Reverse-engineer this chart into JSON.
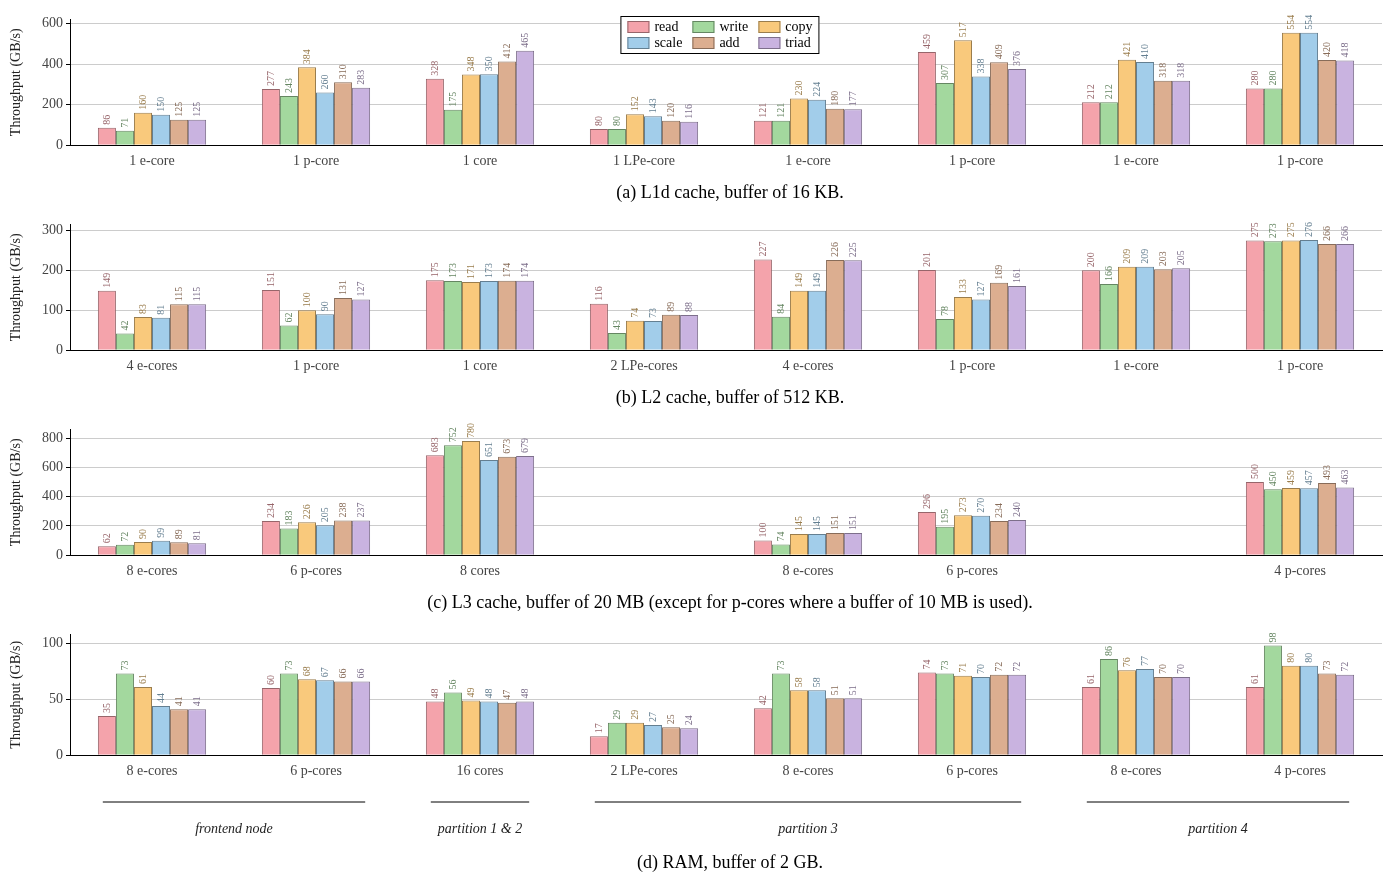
{
  "chart_data": [
    {
      "type": "bar",
      "title": "(a) L1d cache, buffer of 16 KB.",
      "ylabel": "Throughput (GB/s)",
      "categories": [
        "1 e-core",
        "1 p-core",
        "1 core",
        "1 LPe-core",
        "1 e-core",
        "1 p-core",
        "1 e-core",
        "1 p-core"
      ],
      "ylim": [
        0,
        620
      ],
      "yticks": [
        0,
        200,
        400,
        600
      ],
      "grid": "y",
      "legend": "top",
      "data_labels": true,
      "series": [
        {
          "name": "read",
          "color": "#f4a3ab",
          "values": [
            86,
            277,
            328,
            80,
            121,
            459,
            212,
            280
          ]
        },
        {
          "name": "write",
          "color": "#a3d89e",
          "values": [
            71,
            243,
            175,
            80,
            121,
            307,
            212,
            280
          ]
        },
        {
          "name": "copy",
          "color": "#f9c97c",
          "values": [
            160,
            384,
            348,
            152,
            230,
            517,
            421,
            554
          ]
        },
        {
          "name": "scale",
          "color": "#a2cdea",
          "values": [
            150,
            260,
            350,
            143,
            224,
            338,
            410,
            554
          ]
        },
        {
          "name": "add",
          "color": "#dcae90",
          "values": [
            125,
            310,
            412,
            120,
            180,
            409,
            318,
            420
          ]
        },
        {
          "name": "triad",
          "color": "#c9b3e0",
          "values": [
            125,
            283,
            465,
            116,
            177,
            376,
            318,
            418
          ]
        }
      ]
    },
    {
      "type": "bar",
      "title": "(b) L2 cache, buffer of 512 KB.",
      "ylabel": "Throughput (GB/s)",
      "categories": [
        "4 e-cores",
        "1 p-core",
        "1 core",
        "2 LPe-cores",
        "4 e-cores",
        "1 p-core",
        "1 e-core",
        "1 p-core"
      ],
      "ylim": [
        0,
        315
      ],
      "yticks": [
        0,
        100,
        200,
        300
      ],
      "grid": "y",
      "data_labels": true,
      "series": [
        {
          "color": "#f4a3ab",
          "values": [
            149,
            151,
            175,
            116,
            227,
            201,
            200,
            275
          ]
        },
        {
          "color": "#a3d89e",
          "values": [
            42,
            62,
            173,
            43,
            84,
            78,
            166,
            273
          ]
        },
        {
          "color": "#f9c97c",
          "values": [
            83,
            100,
            171,
            74,
            149,
            133,
            209,
            275
          ]
        },
        {
          "color": "#a2cdea",
          "values": [
            81,
            90,
            173,
            73,
            149,
            127,
            209,
            276
          ]
        },
        {
          "color": "#dcae90",
          "values": [
            115,
            131,
            174,
            89,
            226,
            169,
            203,
            266
          ]
        },
        {
          "color": "#c9b3e0",
          "values": [
            115,
            127,
            174,
            88,
            225,
            161,
            205,
            266
          ]
        }
      ]
    },
    {
      "type": "bar",
      "title": "(c) L3 cache, buffer of 20 MB (except for p-cores where a buffer of 10 MB is used).",
      "ylabel": "Throughput (GB/s)",
      "categories": [
        "8 e-cores",
        "6 p-cores",
        "8 cores",
        null,
        "8 e-cores",
        "6 p-cores",
        null,
        "4 p-cores"
      ],
      "ylim": [
        0,
        860
      ],
      "yticks": [
        0,
        200,
        400,
        600,
        800
      ],
      "grid": "y",
      "data_labels": true,
      "series": [
        {
          "color": "#f4a3ab",
          "values": [
            62,
            234,
            683,
            null,
            100,
            296,
            null,
            500
          ]
        },
        {
          "color": "#a3d89e",
          "values": [
            72,
            183,
            752,
            null,
            74,
            195,
            null,
            450
          ]
        },
        {
          "color": "#f9c97c",
          "values": [
            90,
            226,
            780,
            null,
            145,
            273,
            null,
            459
          ]
        },
        {
          "color": "#a2cdea",
          "values": [
            99,
            205,
            651,
            null,
            145,
            270,
            null,
            457
          ]
        },
        {
          "color": "#dcae90",
          "values": [
            89,
            238,
            673,
            null,
            151,
            234,
            null,
            493
          ]
        },
        {
          "color": "#c9b3e0",
          "values": [
            81,
            237,
            679,
            null,
            151,
            240,
            null,
            463
          ]
        }
      ]
    },
    {
      "type": "bar",
      "title": "(d) RAM, buffer of 2 GB.",
      "ylabel": "Throughput (GB/s)",
      "categories": [
        "8 e-cores",
        "6 p-cores",
        "16 cores",
        "2 LPe-cores",
        "8 e-cores",
        "6 p-cores",
        "8 e-cores",
        "4 p-cores"
      ],
      "ylim": [
        0,
        108
      ],
      "yticks": [
        0,
        50,
        100
      ],
      "grid": "y",
      "data_labels": true,
      "annotations": [
        "frontend node",
        "partition 1 & 2",
        "partition 3",
        "partition 4"
      ],
      "series": [
        {
          "color": "#f4a3ab",
          "values": [
            35,
            60,
            48,
            17,
            42,
            74,
            61,
            61
          ]
        },
        {
          "color": "#a3d89e",
          "values": [
            73,
            73,
            56,
            29,
            73,
            73,
            86,
            98
          ]
        },
        {
          "color": "#f9c97c",
          "values": [
            61,
            68,
            49,
            29,
            58,
            71,
            76,
            80
          ]
        },
        {
          "color": "#a2cdea",
          "values": [
            44,
            67,
            48,
            27,
            58,
            70,
            77,
            80
          ]
        },
        {
          "color": "#dcae90",
          "values": [
            41,
            66,
            47,
            25,
            51,
            72,
            70,
            73
          ]
        },
        {
          "color": "#c9b3e0",
          "values": [
            41,
            66,
            48,
            24,
            51,
            72,
            70,
            72
          ]
        }
      ]
    }
  ]
}
